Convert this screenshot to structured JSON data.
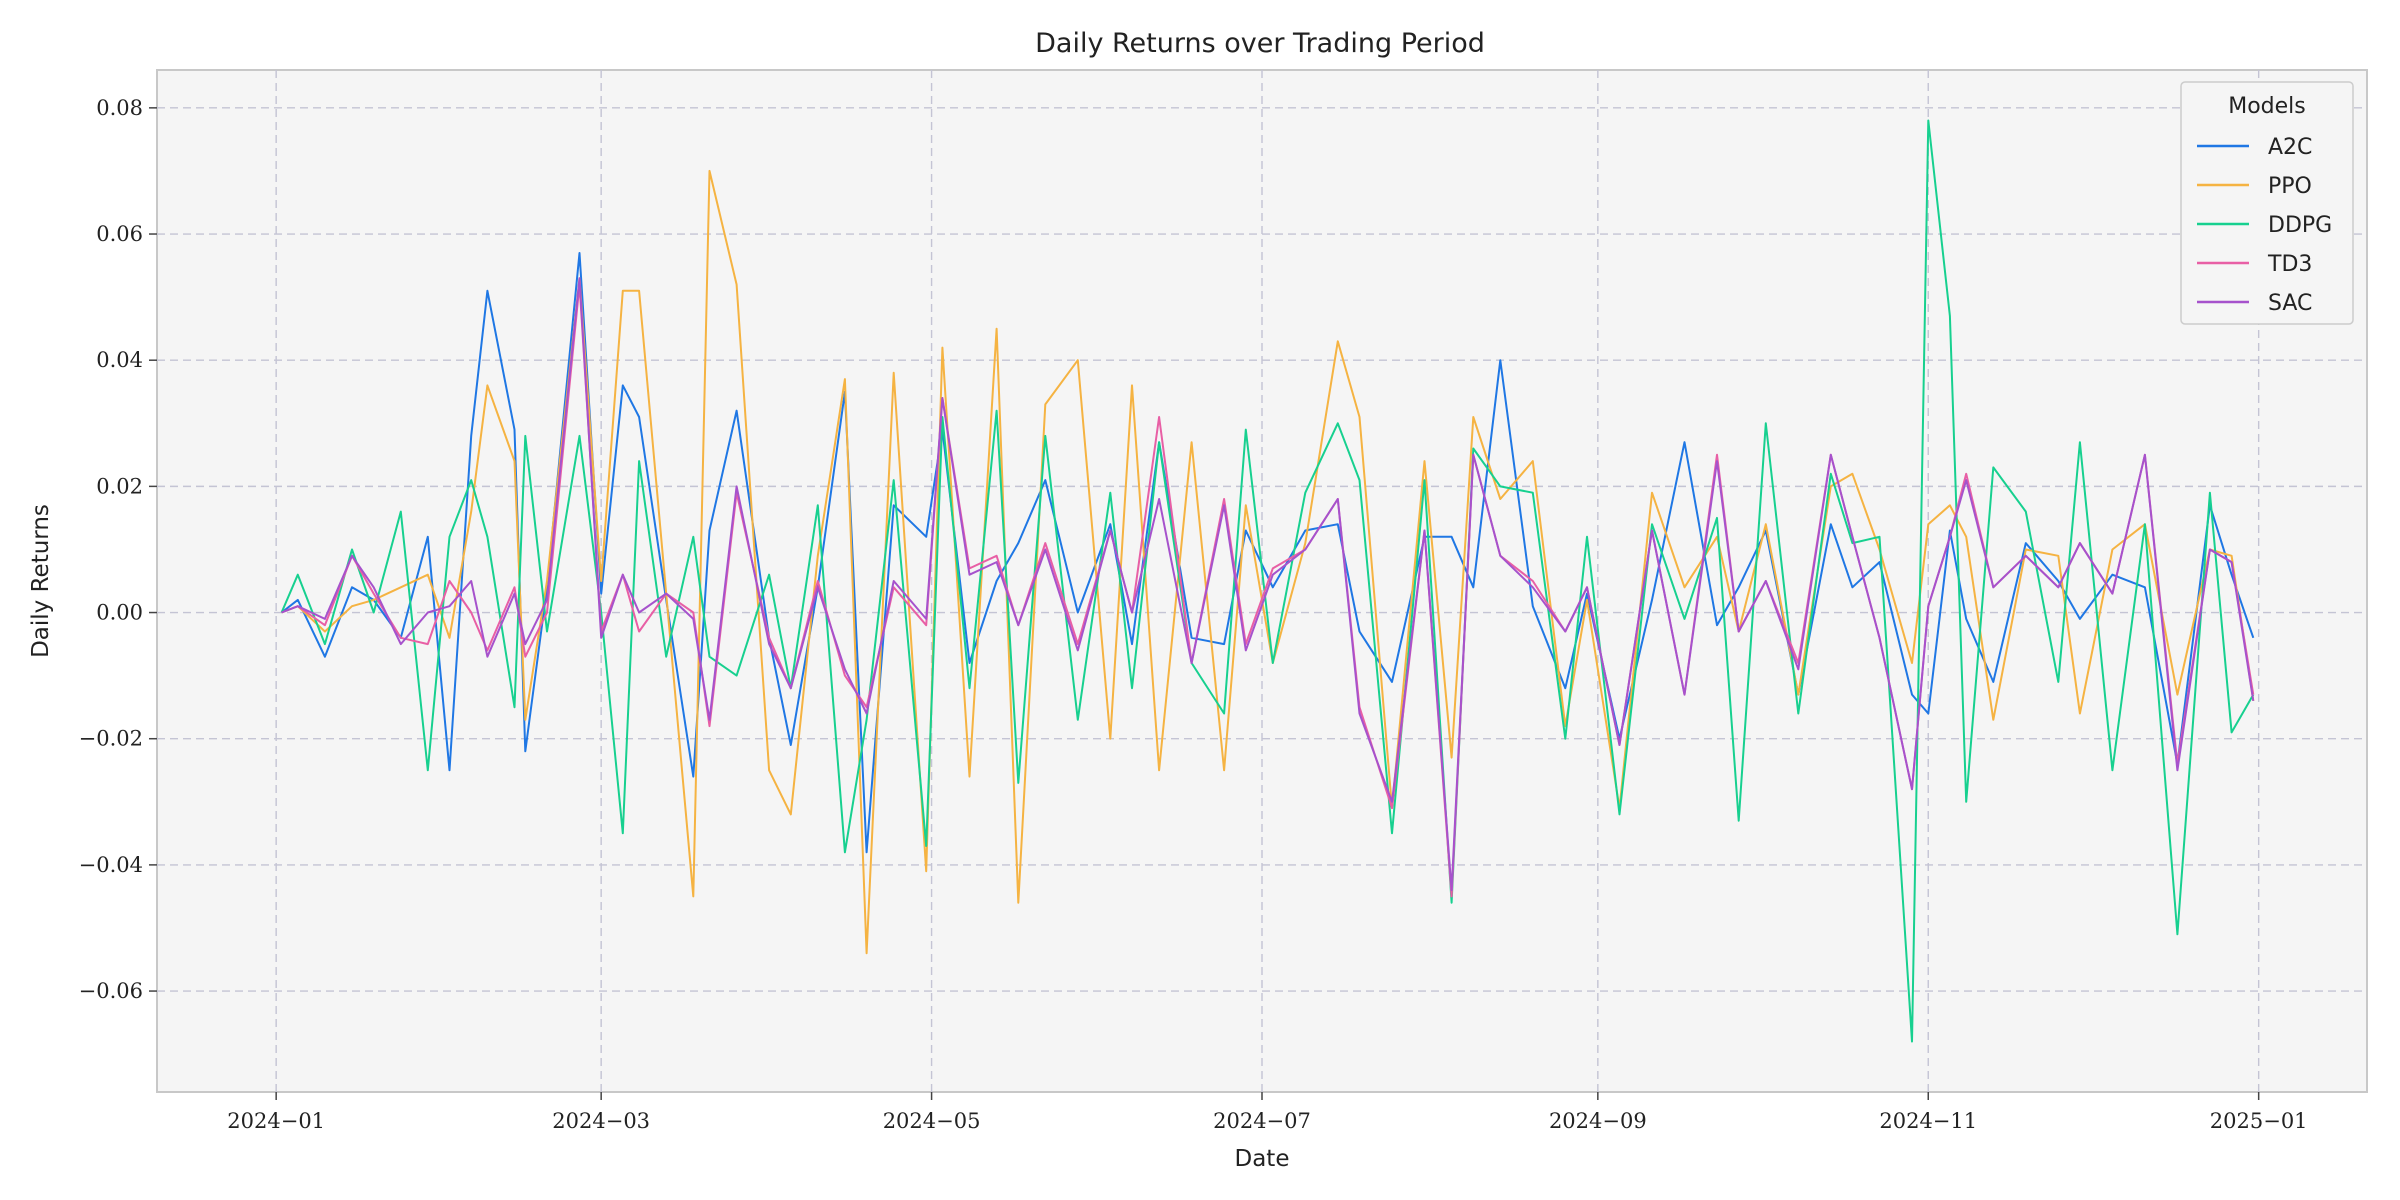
{
  "chart_data": {
    "type": "line",
    "title": "Daily Returns over Trading Period",
    "xlabel": "Date",
    "ylabel": "Daily Returns",
    "xlim": [
      "2023-12-10",
      "2025-01-21"
    ],
    "ylim": [
      -0.076,
      0.086
    ],
    "grid": true,
    "legend_title": "Models",
    "legend_position": "top-right",
    "background_color": "#f5f5f5",
    "x_ticks": [
      "2024-01-01",
      "2024-03-01",
      "2024-05-01",
      "2024-07-01",
      "2024-09-01",
      "2024-11-01",
      "2025-01-01"
    ],
    "x_tick_labels": [
      "2024−01",
      "2024−03",
      "2024−05",
      "2024−07",
      "2024−09",
      "2024−11",
      "2025−01"
    ],
    "y_ticks": [
      -0.06,
      -0.04,
      -0.02,
      0.0,
      0.02,
      0.04,
      0.06,
      0.08
    ],
    "y_tick_labels": [
      "−0.06",
      "−0.04",
      "−0.02",
      "0.00",
      "0.02",
      "0.04",
      "0.06",
      "0.08"
    ],
    "x": [
      "2024-01-02",
      "2024-01-05",
      "2024-01-10",
      "2024-01-15",
      "2024-01-19",
      "2024-01-24",
      "2024-01-29",
      "2024-02-02",
      "2024-02-06",
      "2024-02-09",
      "2024-02-14",
      "2024-02-16",
      "2024-02-20",
      "2024-02-26",
      "2024-03-01",
      "2024-03-05",
      "2024-03-08",
      "2024-03-13",
      "2024-03-18",
      "2024-03-21",
      "2024-03-26",
      "2024-04-01",
      "2024-04-05",
      "2024-04-10",
      "2024-04-15",
      "2024-04-19",
      "2024-04-24",
      "2024-04-30",
      "2024-05-03",
      "2024-05-08",
      "2024-05-13",
      "2024-05-17",
      "2024-05-22",
      "2024-05-28",
      "2024-06-03",
      "2024-06-07",
      "2024-06-12",
      "2024-06-18",
      "2024-06-24",
      "2024-06-28",
      "2024-07-03",
      "2024-07-09",
      "2024-07-15",
      "2024-07-19",
      "2024-07-25",
      "2024-07-31",
      "2024-08-05",
      "2024-08-09",
      "2024-08-14",
      "2024-08-20",
      "2024-08-26",
      "2024-08-30",
      "2024-09-05",
      "2024-09-11",
      "2024-09-17",
      "2024-09-23",
      "2024-09-27",
      "2024-10-02",
      "2024-10-08",
      "2024-10-14",
      "2024-10-18",
      "2024-10-23",
      "2024-10-29",
      "2024-11-01",
      "2024-11-05",
      "2024-11-08",
      "2024-11-13",
      "2024-11-19",
      "2024-11-25",
      "2024-11-29",
      "2024-12-05",
      "2024-12-11",
      "2024-12-17",
      "2024-12-23",
      "2024-12-27",
      "2024-12-31"
    ],
    "series": [
      {
        "name": "A2C",
        "color": "#1f77e4",
        "values": [
          0.0,
          0.002,
          -0.007,
          0.004,
          0.002,
          -0.004,
          0.012,
          -0.025,
          0.028,
          0.051,
          0.029,
          -0.022,
          0.004,
          0.057,
          0.003,
          0.036,
          0.031,
          0.002,
          -0.026,
          0.013,
          0.032,
          -0.004,
          -0.021,
          0.004,
          0.035,
          -0.038,
          0.017,
          0.012,
          0.029,
          -0.008,
          0.005,
          0.011,
          0.021,
          0.0,
          0.014,
          -0.005,
          0.027,
          -0.004,
          -0.005,
          0.013,
          0.004,
          0.013,
          0.014,
          -0.003,
          -0.011,
          0.012,
          0.012,
          0.004,
          0.04,
          0.001,
          -0.012,
          0.003,
          -0.02,
          0.002,
          0.027,
          -0.002,
          0.004,
          0.013,
          -0.013,
          0.014,
          0.004,
          0.008,
          -0.013,
          -0.016,
          0.013,
          -0.001,
          -0.011,
          0.011,
          0.005,
          -0.001,
          0.006,
          0.004,
          -0.024,
          0.017,
          0.006,
          -0.004
        ]
      },
      {
        "name": "PPO",
        "color": "#f5b342",
        "values": [
          0.0,
          0.001,
          -0.003,
          0.001,
          0.002,
          0.004,
          0.006,
          -0.004,
          0.016,
          0.036,
          0.024,
          -0.017,
          0.005,
          0.053,
          0.005,
          0.051,
          0.051,
          0.003,
          -0.045,
          0.07,
          0.052,
          -0.025,
          -0.032,
          0.009,
          0.037,
          -0.054,
          0.038,
          -0.041,
          0.042,
          -0.026,
          0.045,
          -0.046,
          0.033,
          0.04,
          -0.02,
          0.036,
          -0.025,
          0.027,
          -0.025,
          0.017,
          -0.008,
          0.011,
          0.043,
          0.031,
          -0.031,
          0.024,
          -0.023,
          0.031,
          0.018,
          0.024,
          -0.018,
          0.002,
          -0.031,
          0.019,
          0.004,
          0.012,
          -0.003,
          0.014,
          -0.013,
          0.02,
          0.022,
          0.01,
          -0.008,
          0.014,
          0.017,
          0.012,
          -0.017,
          0.01,
          0.009,
          -0.016,
          0.01,
          0.014,
          -0.013,
          0.01,
          0.009,
          -0.014
        ]
      },
      {
        "name": "DDPG",
        "color": "#17d08f",
        "values": [
          0.0,
          0.006,
          -0.005,
          0.01,
          0.0,
          0.016,
          -0.025,
          0.012,
          0.021,
          0.012,
          -0.015,
          0.028,
          -0.003,
          0.028,
          0.0,
          -0.035,
          0.024,
          -0.007,
          0.012,
          -0.007,
          -0.01,
          0.006,
          -0.012,
          0.017,
          -0.038,
          -0.017,
          0.021,
          -0.037,
          0.031,
          -0.012,
          0.032,
          -0.027,
          0.028,
          -0.017,
          0.019,
          -0.012,
          0.027,
          -0.008,
          -0.016,
          0.029,
          -0.008,
          0.019,
          0.03,
          0.021,
          -0.035,
          0.021,
          -0.046,
          0.026,
          0.02,
          0.019,
          -0.02,
          0.012,
          -0.032,
          0.014,
          -0.001,
          0.015,
          -0.033,
          0.03,
          -0.016,
          0.022,
          0.011,
          0.012,
          -0.068,
          0.078,
          0.047,
          -0.03,
          0.023,
          0.016,
          -0.011,
          0.027,
          -0.025,
          0.014,
          -0.051,
          0.019,
          -0.019,
          -0.013
        ]
      },
      {
        "name": "TD3",
        "color": "#e85fa5",
        "values": [
          0.0,
          0.001,
          -0.002,
          0.009,
          0.003,
          -0.004,
          -0.005,
          0.005,
          0.0,
          -0.006,
          0.004,
          -0.007,
          0.0,
          0.052,
          -0.003,
          0.006,
          -0.003,
          0.003,
          0.0,
          -0.018,
          0.019,
          -0.004,
          -0.012,
          0.005,
          -0.01,
          -0.015,
          0.004,
          -0.002,
          0.034,
          0.007,
          0.009,
          -0.002,
          0.011,
          -0.005,
          0.013,
          0.0,
          0.031,
          -0.008,
          0.018,
          -0.005,
          0.007,
          0.01,
          0.018,
          -0.015,
          -0.031,
          0.013,
          -0.045,
          0.025,
          0.009,
          0.005,
          -0.003,
          0.004,
          -0.021,
          0.013,
          -0.013,
          0.025,
          -0.003,
          0.005,
          -0.008,
          0.025,
          0.012,
          -0.004,
          -0.028,
          0.001,
          0.012,
          0.022,
          0.004,
          0.009,
          0.004,
          0.011,
          0.003,
          0.025,
          -0.024,
          0.01,
          0.008,
          -0.013
        ]
      },
      {
        "name": "SAC",
        "color": "#a652cc",
        "values": [
          0.0,
          0.001,
          -0.001,
          0.009,
          0.004,
          -0.005,
          0.0,
          0.001,
          0.005,
          -0.007,
          0.003,
          -0.005,
          0.002,
          0.053,
          -0.004,
          0.006,
          0.0,
          0.003,
          -0.001,
          -0.017,
          0.02,
          -0.005,
          -0.012,
          0.004,
          -0.009,
          -0.016,
          0.005,
          -0.001,
          0.034,
          0.006,
          0.008,
          -0.002,
          0.01,
          -0.006,
          0.013,
          0.0,
          0.018,
          -0.008,
          0.017,
          -0.006,
          0.006,
          0.01,
          0.018,
          -0.016,
          -0.03,
          0.013,
          -0.044,
          0.025,
          0.009,
          0.004,
          -0.003,
          0.004,
          -0.021,
          0.013,
          -0.013,
          0.024,
          -0.003,
          0.005,
          -0.009,
          0.025,
          0.012,
          -0.004,
          -0.028,
          0.001,
          0.012,
          0.021,
          0.004,
          0.009,
          0.004,
          0.011,
          0.003,
          0.025,
          -0.025,
          0.01,
          0.008,
          -0.014
        ]
      }
    ]
  }
}
